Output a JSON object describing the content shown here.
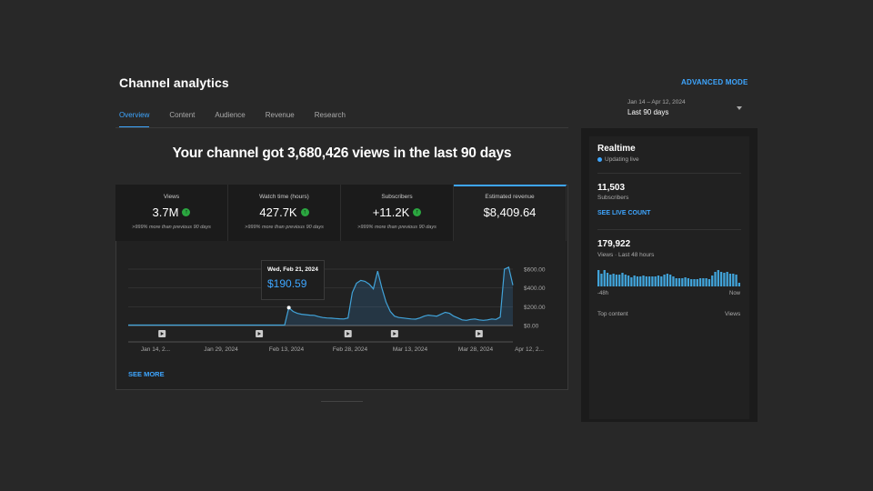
{
  "header": {
    "title": "Channel analytics",
    "advanced_mode": "ADVANCED MODE",
    "tabs": [
      {
        "label": "Overview",
        "active": true
      },
      {
        "label": "Content"
      },
      {
        "label": "Audience"
      },
      {
        "label": "Revenue"
      },
      {
        "label": "Research"
      }
    ],
    "date_range": "Jan 14 – Apr 12, 2024",
    "date_label": "Last 90 days"
  },
  "headline": "Your channel got 3,680,426 views in the last 90 days",
  "metrics": [
    {
      "label": "Views",
      "value": "3.7M",
      "change": ">999% more than previous 90 days"
    },
    {
      "label": "Watch time (hours)",
      "value": "427.7K",
      "change": ">999% more than previous 90 days"
    },
    {
      "label": "Subscribers",
      "value": "+11.2K",
      "change": ">999% more than previous 90 days"
    },
    {
      "label": "Estimated revenue",
      "value": "$8,409.64"
    }
  ],
  "tooltip": {
    "date": "Wed, Feb 21, 2024",
    "value": "$190.59"
  },
  "see_more": "SEE MORE",
  "chart_data": {
    "type": "area",
    "title": "Estimated revenue",
    "x_tick_labels": [
      "Jan 14, 2...",
      "Jan 29, 2024",
      "Feb 13, 2024",
      "Feb 28, 2024",
      "Mar 13, 2024",
      "Mar 28, 2024",
      "Apr 12, 2..."
    ],
    "y_tick_labels": [
      "$600.00",
      "$400.00",
      "$200.00",
      "$0.00"
    ],
    "ylim": [
      0,
      600
    ],
    "values": [
      5,
      5,
      5,
      5,
      5,
      5,
      5,
      5,
      5,
      5,
      5,
      5,
      5,
      5,
      5,
      5,
      5,
      5,
      5,
      5,
      5,
      5,
      5,
      5,
      5,
      5,
      5,
      5,
      5,
      5,
      5,
      5,
      5,
      5,
      5,
      5,
      5,
      5,
      190,
      150,
      130,
      120,
      115,
      110,
      108,
      95,
      85,
      80,
      78,
      75,
      72,
      70,
      80,
      350,
      450,
      480,
      470,
      440,
      390,
      580,
      400,
      250,
      150,
      100,
      85,
      80,
      75,
      70,
      68,
      80,
      100,
      110,
      105,
      100,
      120,
      140,
      130,
      100,
      80,
      60,
      55,
      65,
      70,
      60,
      55,
      60,
      70,
      65,
      90,
      600,
      620,
      430
    ],
    "video_markers_at_index": [
      8,
      31,
      52,
      63,
      83
    ]
  },
  "realtime": {
    "title": "Realtime",
    "status": "Updating live",
    "subscribers_value": "11,503",
    "subscribers_label": "Subscribers",
    "see_live_count": "SEE LIVE COUNT",
    "views_value": "179,922",
    "views_label": "Views · Last 48 hours",
    "axis_start": "-48h",
    "axis_end": "Now",
    "top_content_label": "Top content",
    "top_content_views": "Views",
    "bars": [
      18,
      14,
      18,
      15,
      13,
      14,
      13,
      13,
      15,
      13,
      12,
      10,
      12,
      11,
      11,
      12,
      11,
      11,
      11,
      11,
      12,
      11,
      13,
      14,
      13,
      11,
      9,
      9,
      9,
      10,
      9,
      8,
      8,
      8,
      9,
      9,
      9,
      8,
      12,
      16,
      18,
      16,
      15,
      16,
      14,
      14,
      13,
      4
    ]
  }
}
